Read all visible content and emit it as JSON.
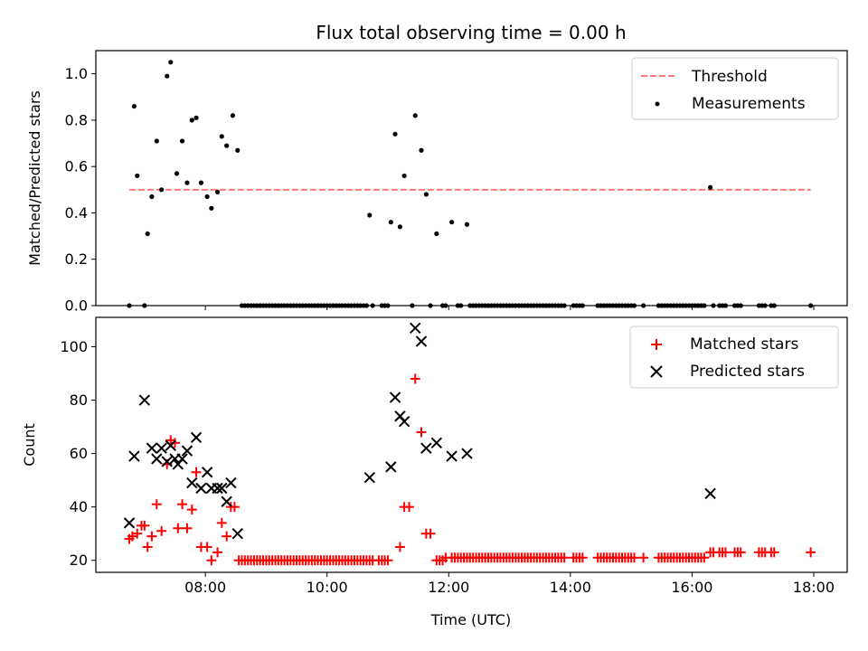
{
  "chart_data": [
    {
      "type": "scatter",
      "title": "Flux total observing time = 0.00 h",
      "xlabel": "",
      "ylabel": "Matched/Predicted stars",
      "ylim": [
        0,
        1.1
      ],
      "yticks": [
        0.0,
        0.2,
        0.4,
        0.6,
        0.8,
        1.0
      ],
      "ytick_labels": [
        "0.0",
        "0.2",
        "0.4",
        "0.6",
        "0.8",
        "1.0"
      ],
      "xlim": [
        6.2,
        18.55
      ],
      "xticks": [
        8,
        10,
        12,
        14,
        16,
        18
      ],
      "legend_position": "top-right",
      "series": [
        {
          "name": "Threshold",
          "kind": "line",
          "style": "dashed",
          "color": "#ff7b7b",
          "x": [
            6.75,
            17.95
          ],
          "y": [
            0.5,
            0.5
          ]
        },
        {
          "name": "Measurements",
          "kind": "scatter",
          "color": "#000000",
          "x": [
            6.75,
            6.83,
            6.88,
            7.0,
            7.05,
            7.12,
            7.2,
            7.28,
            7.37,
            7.43,
            7.53,
            7.62,
            7.7,
            7.78,
            7.85,
            7.93,
            8.03,
            8.1,
            8.2,
            8.27,
            8.35,
            8.45,
            8.53,
            10.7,
            11.05,
            11.12,
            11.2,
            11.27,
            11.4,
            11.45,
            11.55,
            11.63,
            11.8,
            12.05,
            12.3,
            16.3
          ],
          "y": [
            0.0,
            0.86,
            0.56,
            0.0,
            0.31,
            0.47,
            0.71,
            0.5,
            0.99,
            1.05,
            0.57,
            0.71,
            0.53,
            0.8,
            0.81,
            0.53,
            0.47,
            0.42,
            0.49,
            0.73,
            0.69,
            0.82,
            0.67,
            0.39,
            0.36,
            0.74,
            0.34,
            0.56,
            0.0,
            0.82,
            0.67,
            0.48,
            0.31,
            0.36,
            0.35,
            0.51
          ],
          "zeros_x": [
            8.6,
            8.65,
            8.7,
            8.75,
            8.8,
            8.85,
            8.9,
            8.95,
            9.0,
            9.05,
            9.1,
            9.15,
            9.2,
            9.25,
            9.3,
            9.35,
            9.4,
            9.45,
            9.5,
            9.55,
            9.6,
            9.65,
            9.7,
            9.75,
            9.8,
            9.85,
            9.9,
            9.95,
            10.0,
            10.05,
            10.1,
            10.15,
            10.2,
            10.25,
            10.3,
            10.35,
            10.4,
            10.45,
            10.5,
            10.55,
            10.6,
            10.65,
            10.75,
            10.9,
            10.95,
            11.0,
            11.7,
            11.9,
            11.95,
            12.15,
            12.2,
            12.35,
            12.4,
            12.45,
            12.5,
            12.55,
            12.6,
            12.65,
            12.7,
            12.75,
            12.8,
            12.85,
            12.9,
            12.95,
            13.0,
            13.05,
            13.1,
            13.15,
            13.2,
            13.25,
            13.3,
            13.35,
            13.4,
            13.45,
            13.5,
            13.55,
            13.6,
            13.65,
            13.7,
            13.75,
            13.8,
            13.85,
            13.9,
            14.05,
            14.1,
            14.15,
            14.2,
            14.45,
            14.5,
            14.55,
            14.6,
            14.65,
            14.7,
            14.75,
            14.8,
            14.85,
            14.9,
            14.95,
            15.0,
            15.05,
            15.2,
            15.45,
            15.5,
            15.55,
            15.6,
            15.65,
            15.7,
            15.75,
            15.8,
            15.85,
            15.9,
            15.95,
            16.0,
            16.05,
            16.1,
            16.15,
            16.2,
            16.35,
            16.45,
            16.5,
            16.55,
            16.7,
            16.75,
            16.8,
            17.1,
            17.15,
            17.2,
            17.3,
            17.35,
            17.95
          ]
        }
      ]
    },
    {
      "type": "scatter",
      "title": "",
      "xlabel": "Time (UTC)",
      "ylabel": "Count",
      "ylim": [
        15.5,
        111
      ],
      "yticks": [
        20,
        40,
        60,
        80,
        100
      ],
      "ytick_labels": [
        "20",
        "40",
        "60",
        "80",
        "100"
      ],
      "xlim": [
        6.2,
        18.55
      ],
      "xticks": [
        8,
        10,
        12,
        14,
        16,
        18
      ],
      "xtick_labels": [
        "08:00",
        "10:00",
        "12:00",
        "14:00",
        "16:00",
        "18:00"
      ],
      "legend_position": "top-right",
      "series": [
        {
          "name": "Matched stars",
          "kind": "plus",
          "color": "#ff0000",
          "x": [
            6.75,
            6.8,
            6.88,
            6.95,
            7.0,
            7.05,
            7.12,
            7.2,
            7.28,
            7.37,
            7.43,
            7.5,
            7.55,
            7.62,
            7.7,
            7.78,
            7.85,
            7.93,
            8.03,
            8.1,
            8.2,
            8.27,
            8.35,
            8.42,
            8.48,
            11.2,
            11.27,
            11.35,
            11.45,
            11.55,
            11.63,
            11.7,
            11.8,
            16.3
          ],
          "y": [
            28,
            29,
            30,
            33,
            33,
            25,
            29,
            41,
            31,
            56,
            65,
            64,
            32,
            41,
            32,
            39,
            53,
            25,
            25,
            20,
            23,
            34,
            29,
            40,
            40,
            25,
            40,
            40,
            88,
            68,
            30,
            30,
            20,
            23
          ],
          "baseline_20_x": [
            8.55,
            8.6,
            8.65,
            8.7,
            8.75,
            8.8,
            8.85,
            8.9,
            8.95,
            9.0,
            9.05,
            9.1,
            9.15,
            9.2,
            9.25,
            9.3,
            9.35,
            9.4,
            9.45,
            9.5,
            9.55,
            9.6,
            9.65,
            9.7,
            9.75,
            9.8,
            9.85,
            9.9,
            9.95,
            10.0,
            10.05,
            10.1,
            10.15,
            10.2,
            10.25,
            10.3,
            10.35,
            10.4,
            10.45,
            10.5,
            10.55,
            10.6,
            10.65,
            10.7,
            10.75,
            10.85,
            10.9,
            10.95,
            11.0,
            11.85,
            11.9
          ],
          "baseline_21_x": [
            11.95,
            12.05,
            12.1,
            12.15,
            12.2,
            12.25,
            12.3,
            12.35,
            12.4,
            12.45,
            12.5,
            12.55,
            12.6,
            12.65,
            12.7,
            12.75,
            12.8,
            12.85,
            12.9,
            12.95,
            13.0,
            13.05,
            13.1,
            13.15,
            13.2,
            13.25,
            13.3,
            13.35,
            13.4,
            13.45,
            13.5,
            13.55,
            13.6,
            13.65,
            13.7,
            13.75,
            13.8,
            13.85,
            13.9,
            14.05,
            14.1,
            14.15,
            14.2,
            14.45,
            14.5,
            14.55,
            14.6,
            14.65,
            14.7,
            14.75,
            14.8,
            14.85,
            14.9,
            14.95,
            15.0,
            15.05,
            15.2,
            15.45,
            15.5,
            15.55,
            15.6,
            15.65,
            15.7,
            15.75,
            15.8,
            15.85,
            15.9,
            15.95,
            16.0,
            16.05,
            16.1,
            16.15,
            16.2
          ],
          "baseline_23_x": [
            16.35,
            16.45,
            16.5,
            16.55,
            16.7,
            16.75,
            16.8,
            17.1,
            17.15,
            17.2,
            17.3,
            17.35,
            17.95
          ]
        },
        {
          "name": "Predicted stars",
          "kind": "cross",
          "color": "#000000",
          "x": [
            6.75,
            6.83,
            7.0,
            7.12,
            7.2,
            7.28,
            7.37,
            7.43,
            7.5,
            7.55,
            7.62,
            7.7,
            7.78,
            7.85,
            7.93,
            8.03,
            8.1,
            8.2,
            8.27,
            8.35,
            8.42,
            8.53,
            10.7,
            11.05,
            11.12,
            11.2,
            11.27,
            11.45,
            11.55,
            11.63,
            11.8,
            12.05,
            12.3,
            16.3
          ],
          "y": [
            34,
            59,
            80,
            62,
            58,
            62,
            57,
            63,
            58,
            56,
            58,
            61,
            49,
            66,
            47,
            53,
            47,
            47,
            47,
            42,
            49,
            30,
            51,
            55,
            81,
            74,
            72,
            107,
            102,
            62,
            64,
            59,
            60,
            45
          ]
        }
      ]
    }
  ]
}
